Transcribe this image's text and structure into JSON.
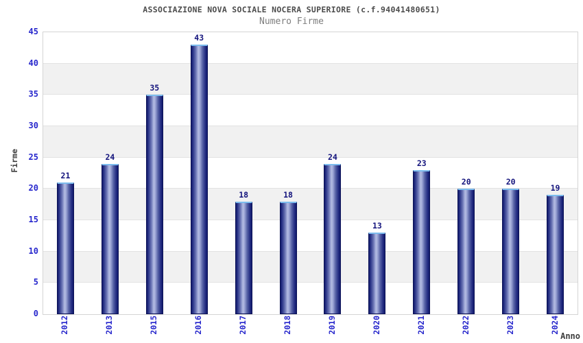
{
  "title": "ASSOCIAZIONE NOVA SOCIALE NOCERA SUPERIORE (c.f.94041480651)",
  "subtitle": "Numero Firme",
  "chart_data": {
    "type": "bar",
    "title": "ASSOCIAZIONE NOVA SOCIALE NOCERA SUPERIORE (c.f.94041480651)",
    "subtitle": "Numero Firme",
    "categories": [
      "2012",
      "2013",
      "2015",
      "2016",
      "2017",
      "2018",
      "2019",
      "2020",
      "2021",
      "2022",
      "2023",
      "2024"
    ],
    "values": [
      21,
      24,
      35,
      43,
      18,
      18,
      24,
      13,
      23,
      20,
      20,
      19
    ],
    "xlabel": "Anno",
    "ylabel": "Firme",
    "ylim": [
      0,
      45
    ],
    "ytick_step": 5,
    "grid": "horizontal-bands-alternating",
    "legend": "none",
    "colors": {
      "bar_edge": "#0c1257",
      "bar_dark": "#10196b",
      "bar_highlight": "#b4bce2",
      "bar_cap": "#7cbcee",
      "tick_label": "#2626cc",
      "value_label": "#14147d",
      "title_text": "#4c4c4c",
      "subtitle_text": "#7d7d7d",
      "axis_title_text": "#3d3d3d",
      "band_gray": "#f1f1f1",
      "band_white": "#ffffff",
      "plot_border": "#d4d4d4",
      "gridline": "#e2e2e2"
    }
  }
}
